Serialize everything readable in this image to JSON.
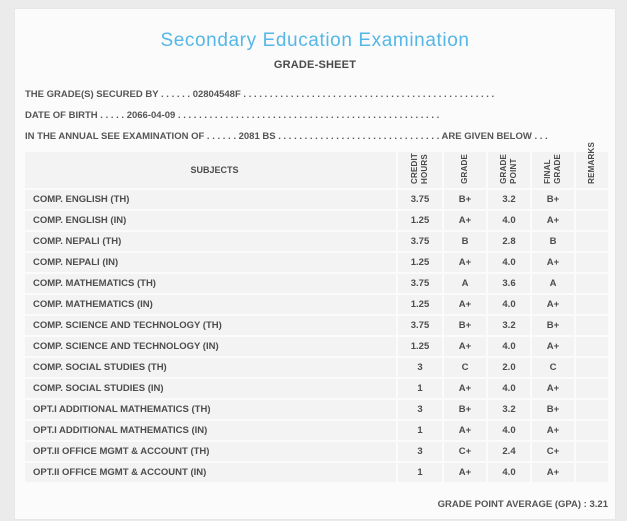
{
  "header": {
    "title": "Secondary Education Examination",
    "subtitle": "GRADE-SHEET"
  },
  "info": {
    "line1": {
      "label": "THE GRADE(S) SECURED BY",
      "dots_before": ". . . . . .",
      "value": "02804548F",
      "dots_after": ". . . . . . . . . . . . . . . . . . . . . . . . . . . . . . . . . . . . . . . . . . . . . . . ."
    },
    "line2": {
      "label": "DATE OF BIRTH",
      "dots_before": ". . . . .",
      "value": "2066-04-09",
      "dots_after": ". . . . . . . . . . . . . . . . . . . . . . . . . . . . . . . . . . . . . . . . . . . . . . . . . ."
    },
    "line3": {
      "label": "IN THE ANNUAL SEE EXAMINATION OF",
      "dots_before": ". . . . . .",
      "value": "2081 BS",
      "dots_mid": ". . . . . . . . . . . . . . . . . . . . . . . . . . . . . . .",
      "suffix": "ARE GIVEN BELOW",
      "dots_after": ". . ."
    }
  },
  "table": {
    "columns": {
      "subjects": "SUBJECTS",
      "credit_hours": "CREDIT\nHOURS",
      "grade": "GRADE",
      "grade_point": "GRADE\nPOINT",
      "final_grade": "FINAL\nGRADE",
      "remarks": "REMARKS"
    },
    "rows": [
      {
        "subject": "COMP. ENGLISH (TH)",
        "credit_hours": "3.75",
        "grade": "B+",
        "grade_point": "3.2",
        "final_grade": "B+",
        "remarks": ""
      },
      {
        "subject": "COMP. ENGLISH (IN)",
        "credit_hours": "1.25",
        "grade": "A+",
        "grade_point": "4.0",
        "final_grade": "A+",
        "remarks": ""
      },
      {
        "subject": "COMP. NEPALI (TH)",
        "credit_hours": "3.75",
        "grade": "B",
        "grade_point": "2.8",
        "final_grade": "B",
        "remarks": ""
      },
      {
        "subject": "COMP. NEPALI (IN)",
        "credit_hours": "1.25",
        "grade": "A+",
        "grade_point": "4.0",
        "final_grade": "A+",
        "remarks": ""
      },
      {
        "subject": "COMP. MATHEMATICS (TH)",
        "credit_hours": "3.75",
        "grade": "A",
        "grade_point": "3.6",
        "final_grade": "A",
        "remarks": ""
      },
      {
        "subject": "COMP. MATHEMATICS (IN)",
        "credit_hours": "1.25",
        "grade": "A+",
        "grade_point": "4.0",
        "final_grade": "A+",
        "remarks": ""
      },
      {
        "subject": "COMP. SCIENCE AND TECHNOLOGY (TH)",
        "credit_hours": "3.75",
        "grade": "B+",
        "grade_point": "3.2",
        "final_grade": "B+",
        "remarks": ""
      },
      {
        "subject": "COMP. SCIENCE AND TECHNOLOGY (IN)",
        "credit_hours": "1.25",
        "grade": "A+",
        "grade_point": "4.0",
        "final_grade": "A+",
        "remarks": ""
      },
      {
        "subject": "COMP. SOCIAL STUDIES (TH)",
        "credit_hours": "3",
        "grade": "C",
        "grade_point": "2.0",
        "final_grade": "C",
        "remarks": ""
      },
      {
        "subject": "COMP. SOCIAL STUDIES (IN)",
        "credit_hours": "1",
        "grade": "A+",
        "grade_point": "4.0",
        "final_grade": "A+",
        "remarks": ""
      },
      {
        "subject": "OPT.I ADDITIONAL MATHEMATICS (TH)",
        "credit_hours": "3",
        "grade": "B+",
        "grade_point": "3.2",
        "final_grade": "B+",
        "remarks": ""
      },
      {
        "subject": "OPT.I ADDITIONAL MATHEMATICS (IN)",
        "credit_hours": "1",
        "grade": "A+",
        "grade_point": "4.0",
        "final_grade": "A+",
        "remarks": ""
      },
      {
        "subject": "OPT.II OFFICE MGMT & ACCOUNT (TH)",
        "credit_hours": "3",
        "grade": "C+",
        "grade_point": "2.4",
        "final_grade": "C+",
        "remarks": ""
      },
      {
        "subject": "OPT.II OFFICE MGMT & ACCOUNT (IN)",
        "credit_hours": "1",
        "grade": "A+",
        "grade_point": "4.0",
        "final_grade": "A+",
        "remarks": ""
      }
    ]
  },
  "footer": {
    "gpa_label": "GRADE POINT AVERAGE (GPA) :",
    "gpa_value": "3.21"
  },
  "colors": {
    "title_blue": "#54b7e7",
    "text_gray": "#4d4d4d",
    "cell_bg": "#f3f3f3"
  }
}
